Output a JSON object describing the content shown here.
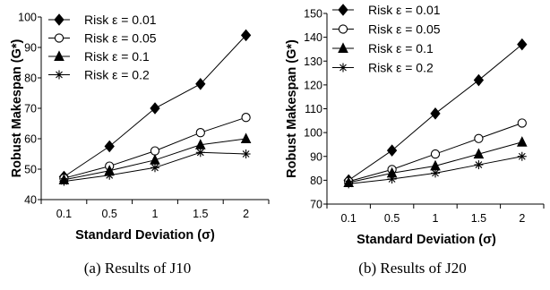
{
  "chart_data": [
    {
      "type": "line",
      "caption": "(a) Results of J10",
      "xlabel": "Standard Deviation (σ)",
      "ylabel": "Robust Makespan (G*)",
      "categories": [
        "0.1",
        "0.5",
        "1",
        "1.5",
        "2"
      ],
      "ylim": [
        40,
        100
      ],
      "yticks": [
        40,
        50,
        60,
        70,
        80,
        90,
        100
      ],
      "legend": "top-left",
      "grid": false,
      "series": [
        {
          "name": "Risk ε = 0.01",
          "marker": "diamond",
          "values": [
            47.5,
            57.5,
            70,
            78,
            94
          ]
        },
        {
          "name": "Risk ε = 0.05",
          "marker": "circle",
          "values": [
            47,
            51,
            56,
            62,
            67
          ]
        },
        {
          "name": "Risk ε = 0.1",
          "marker": "triangle",
          "values": [
            46.5,
            49.5,
            53,
            58,
            60
          ]
        },
        {
          "name": "Risk ε = 0.2",
          "marker": "asterisk",
          "values": [
            46,
            48,
            50.5,
            55.5,
            55
          ]
        }
      ]
    },
    {
      "type": "line",
      "caption": "(b) Results of J20",
      "xlabel": "Standard Deviation (σ)",
      "ylabel": "Robust Makespan (G*)",
      "categories": [
        "0.1",
        "0.5",
        "1",
        "1.5",
        "2"
      ],
      "ylim": [
        70,
        150
      ],
      "yticks": [
        70,
        80,
        90,
        100,
        110,
        120,
        130,
        140,
        150
      ],
      "legend": "top-left",
      "grid": false,
      "series": [
        {
          "name": "Risk ε = 0.01",
          "marker": "diamond",
          "values": [
            80,
            92.5,
            108,
            122,
            137
          ]
        },
        {
          "name": "Risk ε = 0.05",
          "marker": "circle",
          "values": [
            79.5,
            84.5,
            91,
            97.5,
            104
          ]
        },
        {
          "name": "Risk ε = 0.1",
          "marker": "triangle",
          "values": [
            79,
            83,
            86,
            91,
            96
          ]
        },
        {
          "name": "Risk ε = 0.2",
          "marker": "asterisk",
          "values": [
            78.5,
            80.5,
            83,
            86.5,
            90
          ]
        }
      ]
    }
  ]
}
